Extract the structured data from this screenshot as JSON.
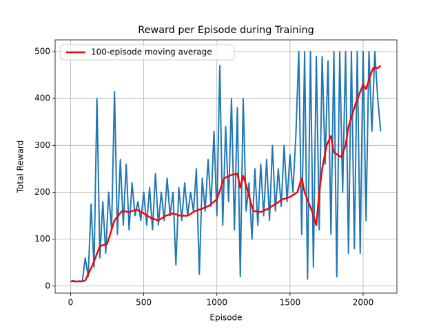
{
  "chart_data": {
    "type": "line",
    "title": "Reward per Episode during Training",
    "xlabel": "Episode",
    "ylabel": "Total Reward",
    "xlim": [
      -106,
      2231
    ],
    "ylim": [
      -15,
      525
    ],
    "xticks": [
      0,
      500,
      1000,
      1500,
      2000
    ],
    "yticks": [
      0,
      100,
      200,
      300,
      400,
      500
    ],
    "grid": true,
    "legend": "upper-left",
    "series": [
      {
        "color": "#1f77b4",
        "width": 2,
        "x": [
          0,
          20,
          40,
          60,
          80,
          100,
          120,
          140,
          160,
          180,
          200,
          220,
          240,
          260,
          280,
          300,
          320,
          340,
          360,
          380,
          400,
          420,
          440,
          460,
          480,
          500,
          520,
          540,
          560,
          580,
          600,
          620,
          640,
          660,
          680,
          700,
          720,
          740,
          760,
          780,
          800,
          820,
          840,
          860,
          880,
          900,
          920,
          940,
          960,
          980,
          1000,
          1020,
          1040,
          1060,
          1080,
          1100,
          1120,
          1140,
          1160,
          1180,
          1200,
          1220,
          1240,
          1260,
          1280,
          1300,
          1320,
          1340,
          1360,
          1380,
          1400,
          1420,
          1440,
          1460,
          1480,
          1500,
          1520,
          1540,
          1560,
          1580,
          1600,
          1620,
          1640,
          1660,
          1680,
          1700,
          1720,
          1740,
          1760,
          1780,
          1800,
          1820,
          1840,
          1860,
          1880,
          1900,
          1920,
          1940,
          1960,
          1980,
          2000,
          2020,
          2040,
          2060,
          2080,
          2100,
          2120
        ],
        "values": [
          10,
          12,
          9,
          11,
          10,
          60,
          20,
          175,
          40,
          400,
          60,
          180,
          70,
          200,
          120,
          415,
          110,
          270,
          130,
          260,
          120,
          220,
          150,
          180,
          140,
          200,
          130,
          210,
          120,
          240,
          130,
          200,
          140,
          230,
          150,
          200,
          45,
          210,
          140,
          220,
          150,
          200,
          160,
          250,
          25,
          230,
          160,
          270,
          170,
          330,
          150,
          470,
          130,
          340,
          180,
          400,
          120,
          380,
          20,
          400,
          160,
          220,
          100,
          250,
          130,
          260,
          150,
          270,
          140,
          300,
          160,
          250,
          170,
          300,
          180,
          280,
          200,
          320,
          500,
          110,
          500,
          15,
          500,
          40,
          490,
          120,
          490,
          260,
          480,
          110,
          500,
          20,
          500,
          200,
          500,
          70,
          500,
          80,
          500,
          70,
          500,
          140,
          500,
          330,
          500,
          400,
          330
        ]
      },
      {
        "name": "100-episode moving average",
        "color": "#ff0000",
        "width": 2.5,
        "x": [
          0,
          80,
          100,
          150,
          200,
          250,
          300,
          350,
          400,
          450,
          500,
          550,
          600,
          650,
          700,
          750,
          800,
          850,
          900,
          950,
          1000,
          1050,
          1100,
          1140,
          1160,
          1180,
          1200,
          1230,
          1250,
          1300,
          1350,
          1400,
          1450,
          1500,
          1550,
          1580,
          1600,
          1650,
          1680,
          1700,
          1720,
          1750,
          1780,
          1800,
          1850,
          1880,
          1900,
          1950,
          2000,
          2020,
          2050,
          2070,
          2100,
          2120
        ],
        "values": [
          10,
          10,
          12,
          45,
          85,
          90,
          140,
          160,
          158,
          163,
          155,
          145,
          140,
          150,
          155,
          150,
          150,
          160,
          165,
          172,
          185,
          230,
          237,
          240,
          210,
          235,
          215,
          180,
          160,
          158,
          165,
          175,
          185,
          190,
          200,
          230,
          200,
          160,
          130,
          200,
          250,
          300,
          320,
          285,
          275,
          300,
          340,
          390,
          430,
          420,
          450,
          465,
          465,
          470
        ]
      }
    ]
  }
}
